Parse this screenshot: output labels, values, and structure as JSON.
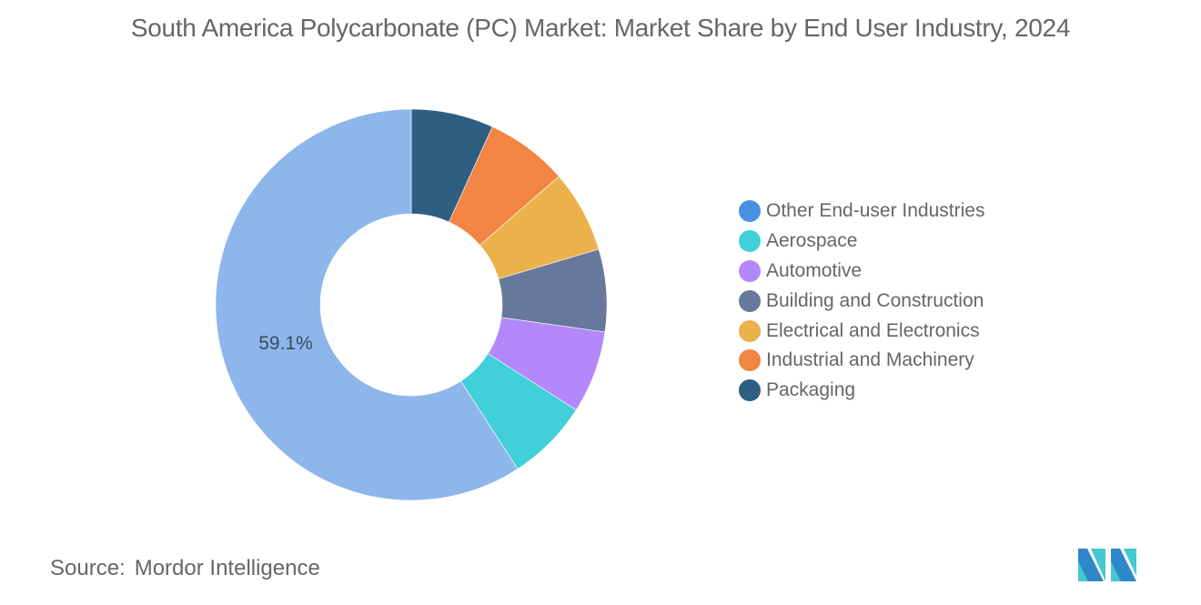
{
  "title": "South America Polycarbonate (PC) Market: Market Share by End User Industry, 2024",
  "chart_data": {
    "type": "pie",
    "subtype": "donut",
    "title": "South America Polycarbonate (PC) Market: Market Share by End User Industry, 2024",
    "categories": [
      "Packaging",
      "Industrial and Machinery",
      "Electrical and Electronics",
      "Building and Construction",
      "Automotive",
      "Aerospace",
      "Other End-user Industries"
    ],
    "values": [
      6.8,
      6.8,
      6.8,
      6.8,
      6.8,
      6.8,
      59.1
    ],
    "colors": [
      "#2e5e82",
      "#f28444",
      "#ebb24c",
      "#66789b",
      "#b388fb",
      "#41cfd9",
      "#8db6ea"
    ],
    "data_labels": [
      {
        "category": "Other End-user Industries",
        "text": "59.1%"
      }
    ],
    "legend": {
      "position": "right",
      "entries": [
        "Other End-user Industries",
        "Aerospace",
        "Automotive",
        "Building and Construction",
        "Electrical and Electronics",
        "Industrial and Machinery",
        "Packaging"
      ],
      "colors": [
        "#4a90e2",
        "#41cfd9",
        "#b388fb",
        "#66789b",
        "#ebb24c",
        "#f28444",
        "#2e5e82"
      ]
    },
    "start_angle": 0,
    "direction": "clockwise"
  },
  "labels": {
    "big_slice": "59.1%"
  },
  "legend": [
    {
      "label": "Other End-user Industries",
      "color": "#4a90e2"
    },
    {
      "label": "Aerospace",
      "color": "#41cfd9"
    },
    {
      "label": "Automotive",
      "color": "#b388fb"
    },
    {
      "label": "Building and Construction",
      "color": "#66789b"
    },
    {
      "label": "Electrical and Electronics",
      "color": "#ebb24c"
    },
    {
      "label": "Industrial and Machinery",
      "color": "#f28444"
    },
    {
      "label": "Packaging",
      "color": "#2e5e82"
    }
  ],
  "footer": {
    "source_key": "Source:",
    "source_value": "Mordor Intelligence",
    "logo": "mordor-intelligence-logo"
  }
}
